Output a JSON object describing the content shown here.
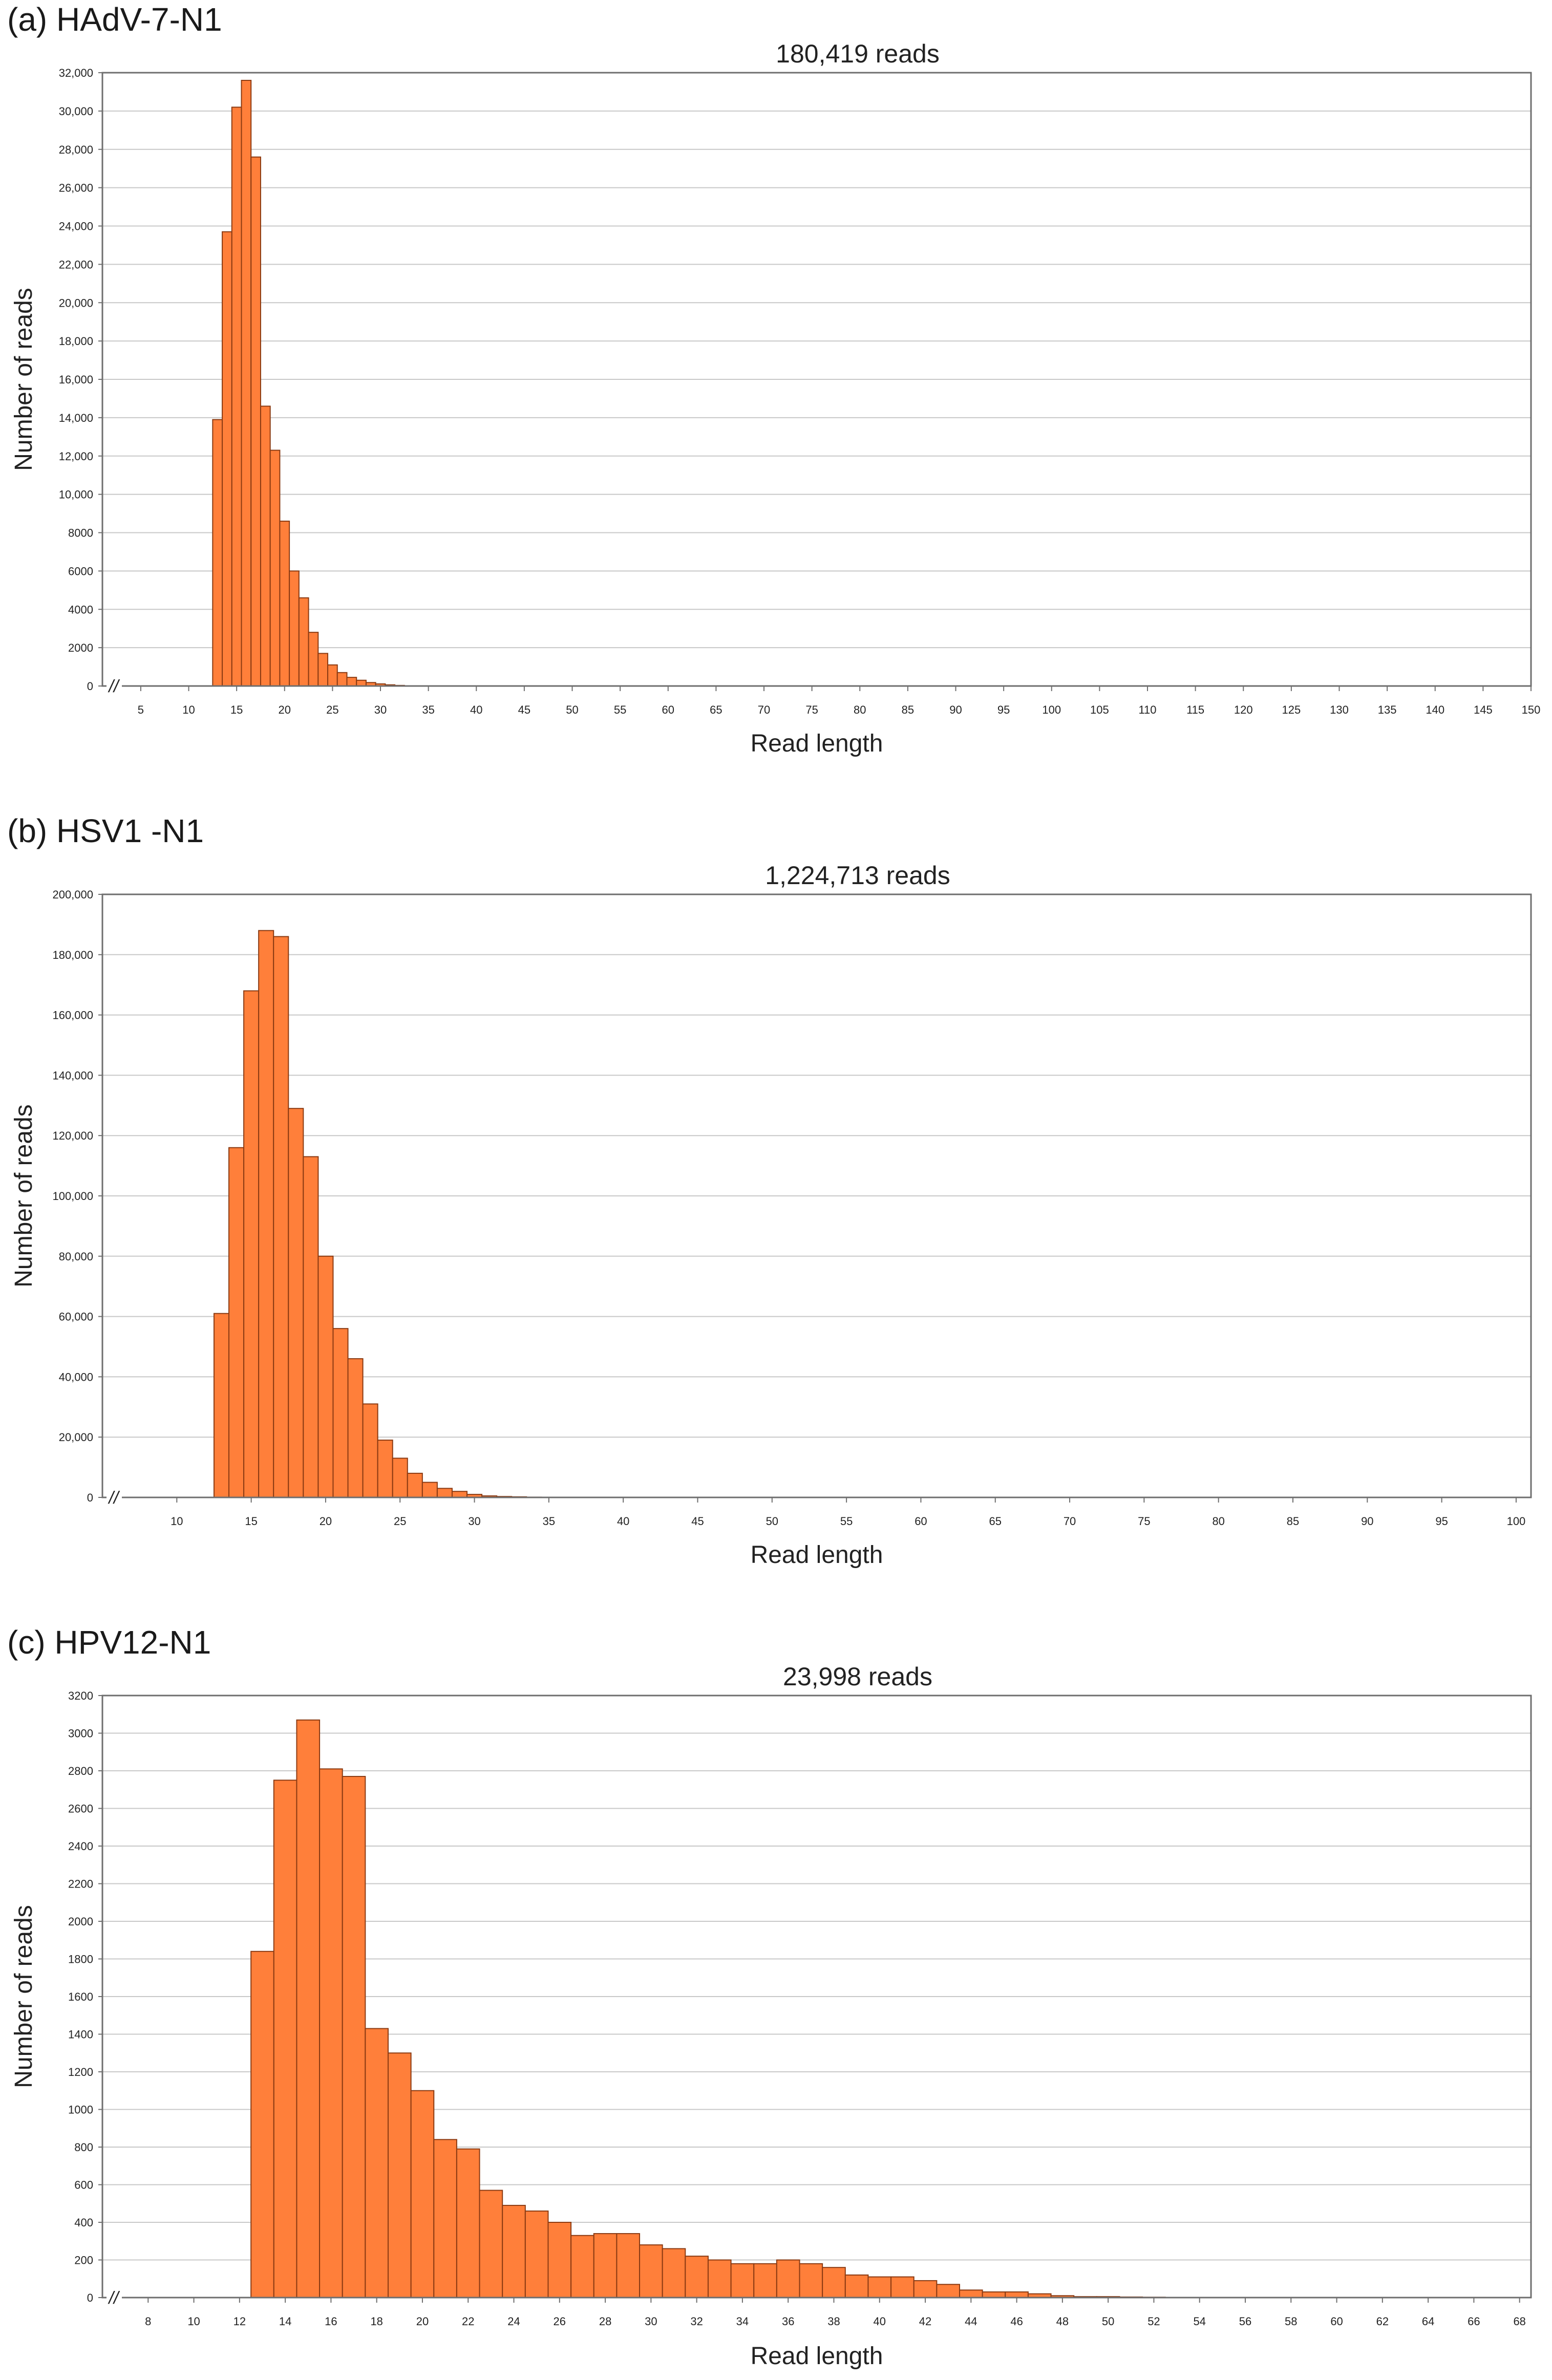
{
  "chart_data": [
    {
      "type": "bar",
      "panel_label": "(a) HAdV-7-N1",
      "title": "180,419 reads",
      "xlabel": "Read length",
      "ylabel": "Number of reads",
      "xlim": [
        1,
        150
      ],
      "ylim": [
        0,
        32000
      ],
      "x_break_marker": "//",
      "y_ticks": [
        0,
        2000,
        4000,
        6000,
        8000,
        10000,
        12000,
        14000,
        16000,
        18000,
        20000,
        22000,
        24000,
        26000,
        28000,
        30000,
        32000
      ],
      "y_tick_labels": [
        "0",
        "2000",
        "4000",
        "6000",
        "8000",
        "10,000",
        "12,000",
        "14,000",
        "16,000",
        "18,000",
        "20,000",
        "22,000",
        "24,000",
        "26,000",
        "28,000",
        "30,000",
        "32,000"
      ],
      "x_ticks": [
        5,
        10,
        15,
        20,
        25,
        30,
        35,
        40,
        45,
        50,
        55,
        60,
        65,
        70,
        75,
        80,
        85,
        90,
        95,
        100,
        105,
        110,
        115,
        120,
        125,
        130,
        135,
        140,
        145,
        150
      ],
      "x_tick_labels": [
        "5",
        "10",
        "15",
        "20",
        "25",
        "30",
        "35",
        "40",
        "45",
        "50",
        "55",
        "60",
        "65",
        "70",
        "75",
        "80",
        "85",
        "90",
        "95",
        "100",
        "105",
        "110",
        "115",
        "120",
        "125",
        "130",
        "135",
        "140",
        "145",
        "150"
      ],
      "x": [
        13,
        14,
        15,
        16,
        17,
        18,
        19,
        20,
        21,
        22,
        23,
        24,
        25,
        26,
        27,
        28,
        29,
        30,
        31,
        32
      ],
      "values": [
        13900,
        23700,
        30200,
        31600,
        27600,
        14600,
        12300,
        8600,
        6000,
        4600,
        2800,
        1700,
        1100,
        700,
        450,
        300,
        180,
        110,
        60,
        30
      ]
    },
    {
      "type": "bar",
      "panel_label": "(b) HSV1 -N1",
      "title": "1,224,713 reads",
      "xlabel": "Read length",
      "ylabel": "Number of reads",
      "xlim": [
        5,
        101
      ],
      "ylim": [
        0,
        200000
      ],
      "x_break_marker": "//",
      "y_ticks": [
        0,
        20000,
        40000,
        60000,
        80000,
        100000,
        120000,
        140000,
        160000,
        180000,
        200000
      ],
      "y_tick_labels": [
        "0",
        "20,000",
        "40,000",
        "60,000",
        "80,000",
        "100,000",
        "120,000",
        "140,000",
        "160,000",
        "180,000",
        "200,000"
      ],
      "x_ticks": [
        10,
        15,
        20,
        25,
        30,
        35,
        40,
        45,
        50,
        55,
        60,
        65,
        70,
        75,
        80,
        85,
        90,
        95,
        100
      ],
      "x_tick_labels": [
        "10",
        "15",
        "20",
        "25",
        "30",
        "35",
        "40",
        "45",
        "50",
        "55",
        "60",
        "65",
        "70",
        "75",
        "80",
        "85",
        "90",
        "95",
        "100"
      ],
      "x": [
        13,
        14,
        15,
        16,
        17,
        18,
        19,
        20,
        21,
        22,
        23,
        24,
        25,
        26,
        27,
        28,
        29,
        30,
        31,
        32,
        33,
        34
      ],
      "values": [
        61000,
        116000,
        168000,
        188000,
        186000,
        129000,
        113000,
        80000,
        56000,
        46000,
        31000,
        19000,
        13000,
        8000,
        5000,
        3000,
        2000,
        1000,
        500,
        300,
        200,
        100
      ]
    },
    {
      "type": "bar",
      "panel_label": "(c) HPV12-N1",
      "title": "23,998 reads",
      "xlabel": "Read length",
      "ylabel": "Number of reads",
      "xlim": [
        6,
        68.5
      ],
      "ylim": [
        0,
        3200
      ],
      "x_break_marker": "//",
      "y_ticks": [
        0,
        200,
        400,
        600,
        800,
        1000,
        1200,
        1400,
        1600,
        1800,
        2000,
        2200,
        2400,
        2600,
        2800,
        3000,
        3200
      ],
      "y_tick_labels": [
        "0",
        "200",
        "400",
        "600",
        "800",
        "1000",
        "1200",
        "1400",
        "1600",
        "1800",
        "2000",
        "2200",
        "2400",
        "2600",
        "2800",
        "3000",
        "3200"
      ],
      "x_ticks": [
        8,
        10,
        12,
        14,
        16,
        18,
        20,
        22,
        24,
        26,
        28,
        30,
        32,
        34,
        36,
        38,
        40,
        42,
        44,
        46,
        48,
        50,
        52,
        54,
        56,
        58,
        60,
        62,
        64,
        66,
        68
      ],
      "x_tick_labels": [
        "8",
        "10",
        "12",
        "14",
        "16",
        "18",
        "20",
        "22",
        "24",
        "26",
        "28",
        "30",
        "32",
        "34",
        "36",
        "38",
        "40",
        "42",
        "44",
        "46",
        "48",
        "50",
        "52",
        "54",
        "56",
        "58",
        "60",
        "62",
        "64",
        "66",
        "68"
      ],
      "x": [
        13,
        14,
        15,
        16,
        17,
        18,
        19,
        20,
        21,
        22,
        23,
        24,
        25,
        26,
        27,
        28,
        29,
        30,
        31,
        32,
        33,
        34,
        35,
        36,
        37,
        38,
        39,
        40,
        41,
        42,
        43,
        44,
        45,
        46,
        47,
        48,
        49,
        50,
        51,
        52
      ],
      "values": [
        1840,
        2750,
        3070,
        2810,
        2770,
        1430,
        1300,
        1100,
        840,
        790,
        570,
        490,
        460,
        400,
        330,
        340,
        340,
        280,
        260,
        220,
        200,
        180,
        180,
        200,
        180,
        160,
        120,
        110,
        110,
        90,
        70,
        40,
        30,
        30,
        20,
        10,
        5,
        5,
        3,
        2
      ]
    }
  ]
}
